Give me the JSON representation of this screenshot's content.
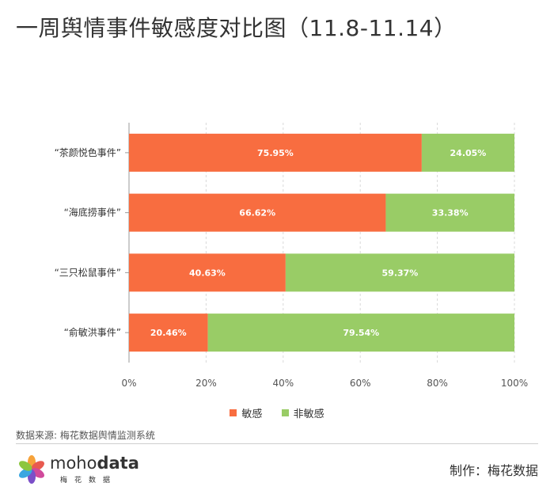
{
  "title": "一周舆情事件敏感度对比图（11.8-11.14）",
  "chart_data": {
    "type": "bar",
    "orientation": "horizontal",
    "stacked": true,
    "categories": [
      "“茶颜悦色事件”",
      "“海底捞事件”",
      "“三只松鼠事件”",
      "“俞敏洪事件”"
    ],
    "series": [
      {
        "name": "敏感",
        "values": [
          75.95,
          66.62,
          40.63,
          20.46
        ],
        "labels": [
          "75.95%",
          "66.62%",
          "40.63%",
          "20.46%"
        ],
        "color": "#f86d40"
      },
      {
        "name": "非敏感",
        "values": [
          24.05,
          33.38,
          59.37,
          79.54
        ],
        "labels": [
          "24.05%",
          "33.38%",
          "59.37%",
          "79.54%"
        ],
        "color": "#99cc66"
      }
    ],
    "xlim": [
      0,
      100
    ],
    "xticks": [
      "0%",
      "20%",
      "40%",
      "60%",
      "80%",
      "100%"
    ],
    "grid": true,
    "legend": "bottom-center"
  },
  "source": "数据来源: 梅花数据舆情监测系统",
  "logo": {
    "word_light": "moho",
    "word_bold": "data",
    "sub": "梅花数据"
  },
  "credit": "制作：梅花数据"
}
